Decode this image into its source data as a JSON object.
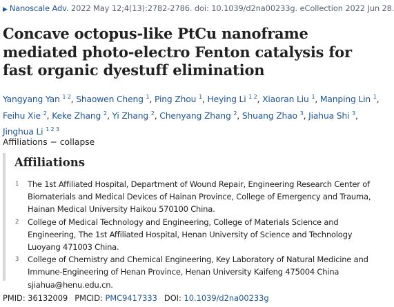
{
  "citation": {
    "journal": "Nanoscale Adv.",
    "details": "2022 May 12;4(13):2782-2786. doi: 10.1039/d2na00233g. eCollection 2022 Jun 28."
  },
  "title": "Concave octopus-like PtCu nanoframe mediated photo-electro Fenton catalysis for fast organic dyestuff elimination",
  "authors": [
    {
      "name": "Yangyang Yan",
      "sups": "1 2",
      "sep": ", "
    },
    {
      "name": "Shaowen Cheng",
      "sups": "1",
      "sep": ", "
    },
    {
      "name": "Ping Zhou",
      "sups": "1",
      "sep": ", "
    },
    {
      "name": "Heying Li",
      "sups": "1 2",
      "sep": ", "
    },
    {
      "name": "Xiaoran Liu",
      "sups": "1",
      "sep": ", "
    },
    {
      "name": "Manping Lin",
      "sups": "1",
      "sep": ", "
    },
    {
      "name": "Feihu Xie",
      "sups": "2",
      "sep": ", "
    },
    {
      "name": "Keke Zhang",
      "sups": "2",
      "sep": ", "
    },
    {
      "name": "Yi Zhang",
      "sups": "2",
      "sep": ", "
    },
    {
      "name": "Chenyang Zhang",
      "sups": "2",
      "sep": ", "
    },
    {
      "name": "Shuang Zhao",
      "sups": "3",
      "sep": ", "
    },
    {
      "name": "Jiahua Shi",
      "sups": "3",
      "sep": ", "
    },
    {
      "name": "Jinghua Li",
      "sups": "1 2 3",
      "sep": ""
    }
  ],
  "affiliations_toggle": {
    "label": "Affiliations",
    "dash": "−",
    "action": "collapse"
  },
  "affiliations": {
    "heading": "Affiliations",
    "items": [
      {
        "num": "1",
        "text": "The 1st Affiliated Hospital, Department of Wound Repair, Engineering Research Center of Biomaterials and Medical Devices of Hainan Province, College of Emergency and Trauma, Hainan Medical University Haikou 570100 China."
      },
      {
        "num": "2",
        "text": "College of Medical Technology and Engineering, College of Materials Science and Engineering, The 1st Affiliated Hospital, Henan University of Science and Technology Luoyang 471003 China."
      },
      {
        "num": "3",
        "text": "College of Chemistry and Chemical Engineering, Key Laboratory of Natural Medicine and Immune-Engineering of Henan Province, Henan University Kaifeng 475004 China sjiahua@henu.edu.cn."
      }
    ]
  },
  "identifiers": {
    "pmid_label": "PMID:",
    "pmid": "36132009",
    "pmcid_label": "PMCID:",
    "pmcid": "PMC9417333",
    "doi_label": "DOI:",
    "doi": "10.1039/d2na00233g"
  },
  "colors": {
    "link": "#205493",
    "text": "#212121",
    "muted": "#5b616b",
    "rule": "#d6d7d9"
  }
}
